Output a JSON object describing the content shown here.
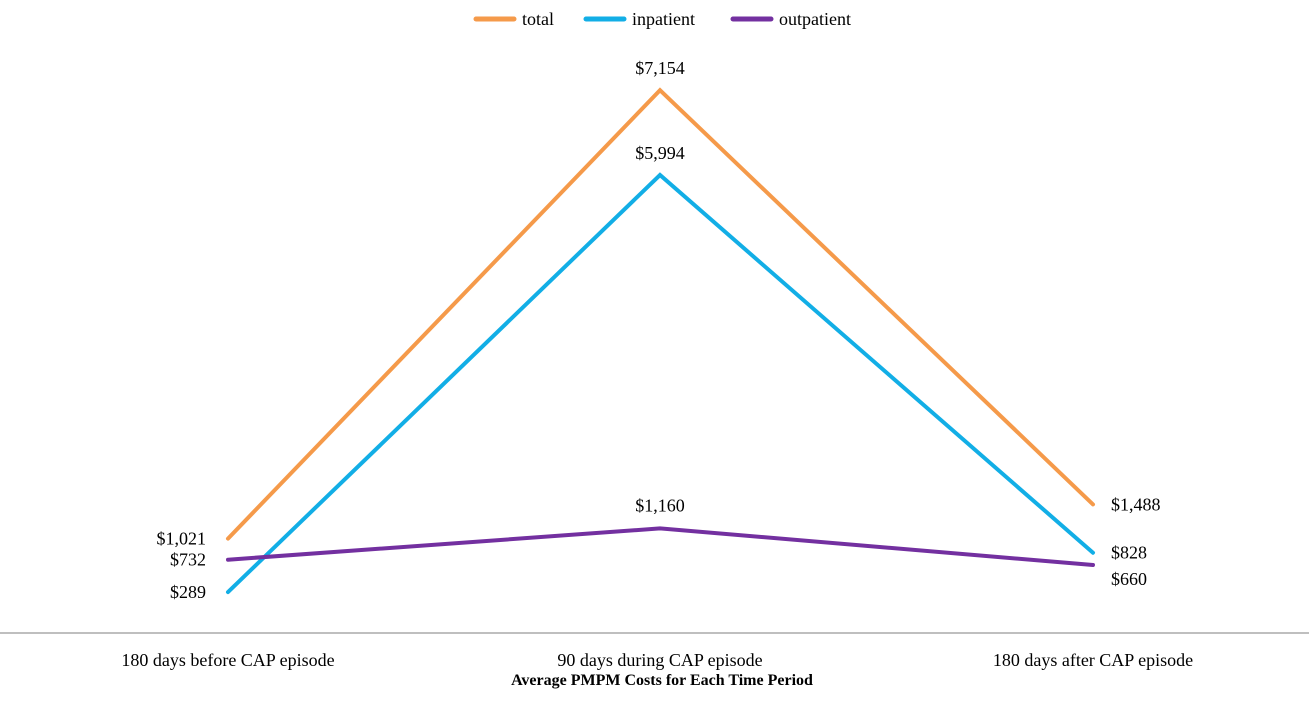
{
  "chart_data": {
    "type": "line",
    "title": "",
    "xlabel": "Average PMPM Costs for Each Time Period",
    "ylabel": "",
    "categories": [
      "180 days before CAP episode",
      "90 days during CAP episode",
      "180 days after CAP episode"
    ],
    "ylim": [
      0,
      7500
    ],
    "grid": false,
    "legend_position": "top-center",
    "series": [
      {
        "name": "total",
        "color": "#F59A4A",
        "values": [
          1021,
          7154,
          1488
        ],
        "labels": [
          "$1,021",
          "$7,154",
          "$1,488"
        ]
      },
      {
        "name": "inpatient",
        "color": "#12AEE6",
        "values": [
          289,
          5994,
          828
        ],
        "labels": [
          "$289",
          "$5,994",
          "$828"
        ]
      },
      {
        "name": "outpatient",
        "color": "#7330A0",
        "values": [
          732,
          1160,
          660
        ],
        "labels": [
          "$732",
          "$1,160",
          "$660"
        ]
      }
    ]
  }
}
